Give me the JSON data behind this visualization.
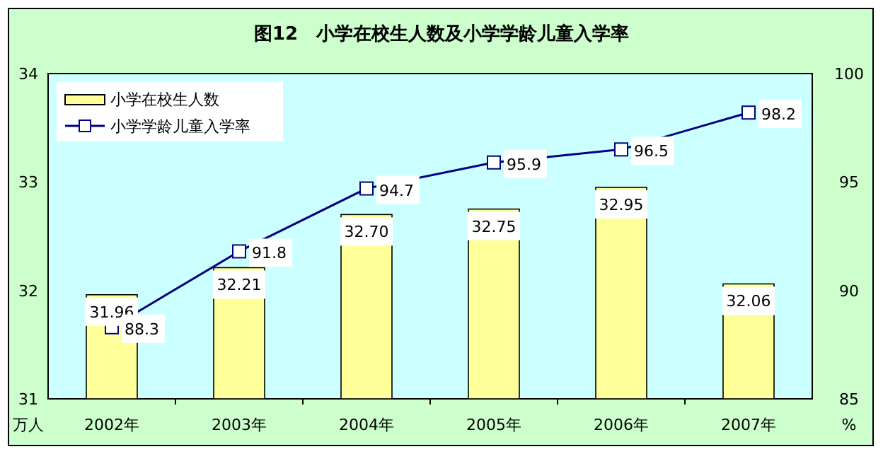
{
  "chart_data": {
    "type": "bar",
    "title": "图12　小学在校生人数及小学学龄儿童入学率",
    "ylabel": "万人",
    "y2label": "%",
    "categories": [
      "2002年",
      "2003年",
      "2004年",
      "2005年",
      "2006年",
      "2007年"
    ],
    "series": [
      {
        "name": "小学在校生人数",
        "color": "#ffff99",
        "values": [
          31.96,
          32.21,
          32.7,
          32.75,
          32.95,
          32.06
        ],
        "value_labels": [
          "31.96",
          "32.21",
          "32.70",
          "32.75",
          "32.95",
          "32.06"
        ]
      },
      {
        "name": "小学学龄儿童入学率",
        "type": "line",
        "axis": "y2",
        "color": "#000080",
        "marker": "square",
        "values": [
          88.3,
          91.8,
          94.7,
          95.9,
          96.5,
          98.2
        ]
      }
    ],
    "ylim": [
      31,
      34
    ],
    "yticks": [
      31,
      32,
      33,
      34
    ],
    "y2lim": [
      85,
      100
    ],
    "y2ticks": [
      85,
      90,
      95,
      100
    ],
    "data_labels": true,
    "legend": "top left",
    "grid": false
  }
}
